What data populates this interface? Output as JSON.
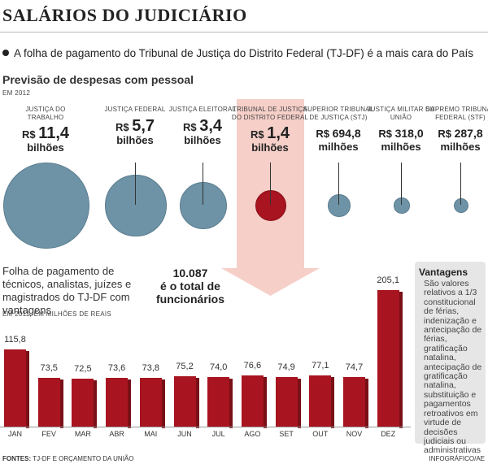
{
  "title": "SALÁRIOS DO JUDICIÁRIO",
  "headline": "A folha de pagamento do Tribunal de Justiça do Distrito Federal (TJ-DF) é a mais cara do País",
  "section1": {
    "title": "Previsão de despesas com pessoal",
    "note": "EM 2012"
  },
  "courts": [
    {
      "name": "JUSTIÇA DO TRABALHO",
      "currency": "R$",
      "value": "11,4",
      "unit": "bilhões",
      "amount_millions": 11400,
      "color": "#6e93a6"
    },
    {
      "name": "JUSTIÇA FEDERAL",
      "currency": "R$",
      "value": "5,7",
      "unit": "bilhões",
      "amount_millions": 5700,
      "color": "#6e93a6"
    },
    {
      "name": "JUSTIÇA ELEITORAL",
      "currency": "R$",
      "value": "3,4",
      "unit": "bilhões",
      "amount_millions": 3400,
      "color": "#6e93a6"
    },
    {
      "name": "TRIBUNAL DE JUSTIÇA DO DISTRITO FEDERAL",
      "currency": "R$",
      "value": "1,4",
      "unit": "bilhões",
      "amount_millions": 1400,
      "color": "#a81420"
    },
    {
      "name": "SUPERIOR TRIBUNAL DE JUSTIÇA (STJ)",
      "currency": "R$",
      "value": "694,8",
      "unit": "milhões",
      "amount_millions": 694.8,
      "color": "#6e93a6"
    },
    {
      "name": "JUSTIÇA MILITAR DA UNIÃO",
      "currency": "R$",
      "value": "318,0",
      "unit": "milhões",
      "amount_millions": 318.0,
      "color": "#6e93a6"
    },
    {
      "name": "SUPREMO TRIBUNAL FEDERAL (STF)",
      "currency": "R$",
      "value": "287,8",
      "unit": "milhões",
      "amount_millions": 287.8,
      "color": "#6e93a6"
    }
  ],
  "section2": {
    "title": "Folha de pagamento de técnicos, analistas, juízes e magistrados do TJ-DF com vantagens",
    "total_number": "10.087",
    "total_text": "é o total de funcionários",
    "note": "EM 2011, EM MILHÕES DE REAIS"
  },
  "sidebar": {
    "title": "Vantagens",
    "text": "São valores relativos a 1/3 constitucional de férias, indenização e antecipação de férias, gratificação natalina, antecipação de gratificação natalina, substituição e pagamentos retroativos em virtude de decisões judiciais ou administrativas"
  },
  "chart_data": [
    {
      "type": "bubble",
      "title": "Previsão de despesas com pessoal",
      "subtitle": "EM 2012",
      "categories": [
        "JUSTIÇA DO TRABALHO",
        "JUSTIÇA FEDERAL",
        "JUSTIÇA ELEITORAL",
        "TRIBUNAL DE JUSTIÇA DO DISTRITO FEDERAL",
        "SUPERIOR TRIBUNAL DE JUSTIÇA (STJ)",
        "JUSTIÇA MILITAR DA UNIÃO",
        "SUPREMO TRIBUNAL FEDERAL (STF)"
      ],
      "values": [
        11400,
        5700,
        3400,
        1400,
        694.8,
        318.0,
        287.8
      ]
    },
    {
      "type": "bar",
      "title": "Folha de pagamento de técnicos, analistas, juízes e magistrados do TJ-DF com vantagens",
      "subtitle": "EM 2011, EM MILHÕES DE REAIS",
      "categories": [
        "JAN",
        "FEV",
        "MAR",
        "ABR",
        "MAI",
        "JUN",
        "JUL",
        "AGO",
        "SET",
        "OUT",
        "NOV",
        "DEZ"
      ],
      "values": [
        115.8,
        73.5,
        72.5,
        73.6,
        73.8,
        75.2,
        74.0,
        76.6,
        74.9,
        77.1,
        74.7,
        205.1
      ],
      "value_labels": [
        "115,8",
        "73,5",
        "72,5",
        "73,6",
        "73,8",
        "75,2",
        "74,0",
        "76,6",
        "74,9",
        "77,1",
        "74,7",
        "205,1"
      ],
      "ylim": [
        0,
        205.1
      ],
      "grid": false,
      "color": "#a81420"
    }
  ],
  "footer": {
    "sources_label": "FONTES:",
    "sources": "TJ-DF E ORÇAMENTO DA UNIÃO",
    "credit": "INFOGRÁFICO/AE"
  }
}
